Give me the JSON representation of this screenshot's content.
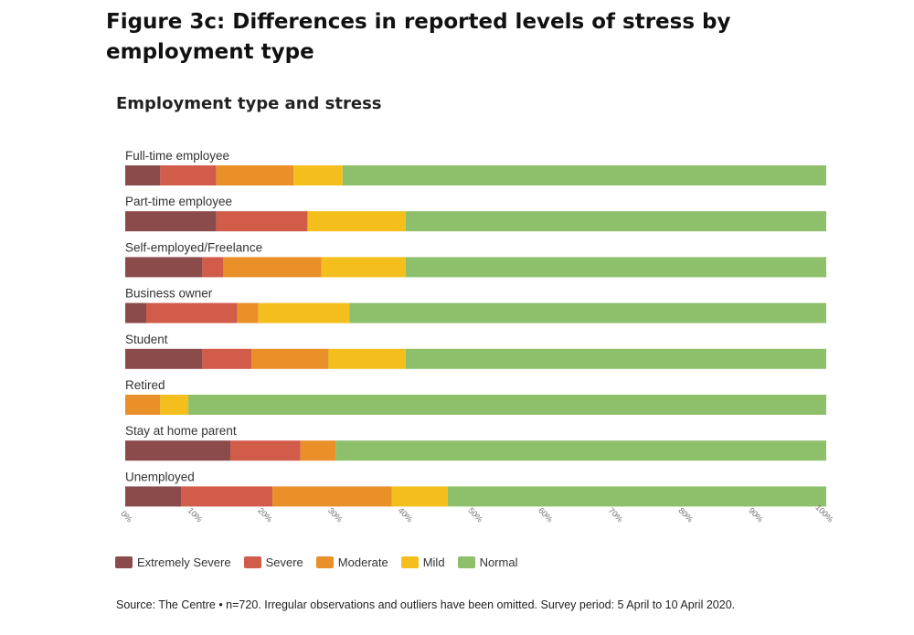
{
  "figure_title": "Figure 3c: Differences in reported levels of stress by employment type",
  "source_note": "Source: The Centre • n=720. Irregular observations and outliers have been omitted. Survey period: 5 April to 10 April 2020.",
  "chart_data": {
    "type": "bar",
    "orientation": "horizontal",
    "stacked": true,
    "title": "Employment type and stress",
    "categories": [
      "Full-time employee",
      "Part-time employee",
      "Self-employed/Freelance",
      "Business owner",
      "Student",
      "Retired",
      "Stay at home parent",
      "Unemployed"
    ],
    "series": [
      {
        "name": "Extremely Severe",
        "color": "#8c4b4b",
        "values": [
          5,
          13,
          11,
          3,
          11,
          0,
          15,
          8
        ]
      },
      {
        "name": "Severe",
        "color": "#d15c4a",
        "values": [
          8,
          13,
          3,
          13,
          7,
          0,
          10,
          13
        ]
      },
      {
        "name": "Moderate",
        "color": "#ea9029",
        "values": [
          11,
          0,
          14,
          3,
          11,
          5,
          5,
          17
        ]
      },
      {
        "name": "Mild",
        "color": "#f4bf1c",
        "values": [
          7,
          14,
          12,
          13,
          11,
          4,
          0,
          8
        ]
      },
      {
        "name": "Normal",
        "color": "#8ec06c",
        "values": [
          69,
          60,
          60,
          68,
          60,
          91,
          70,
          54
        ]
      }
    ],
    "xlim": [
      0,
      100
    ],
    "xticks": [
      "0%",
      "10%",
      "20%",
      "30%",
      "40%",
      "50%",
      "60%",
      "70%",
      "80%",
      "90%",
      "100%"
    ],
    "legend_position": "bottom-left"
  }
}
